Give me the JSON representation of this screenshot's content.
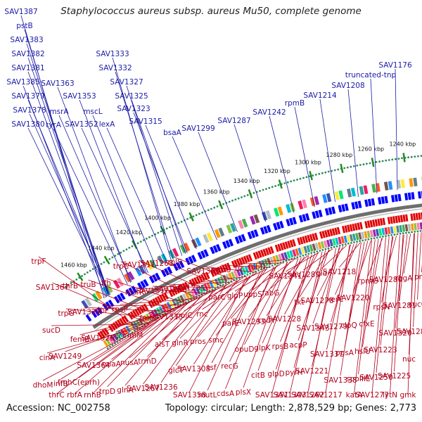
{
  "title": "Staphylococcus aureus subsp. aureus Mu50, complete genome",
  "accession_text": "Accession: NC_002758",
  "summary_text": "Topology: circular; Length: 2,878,529 bp; Genes: 2,773",
  "colors": {
    "backbone": "#6e6e6e",
    "forward_gene": "#0000ff",
    "reverse_gene": "#e00000",
    "forward_label": "#1a1aa6",
    "reverse_label": "#b3001b",
    "tick_dots": "#2e8b57",
    "tick_major": "#228b22"
  },
  "scale_labels": [
    "1460 kbp",
    "1440 kbp",
    "1420 kbp",
    "1400 kbp",
    "1380 kbp",
    "1360 kbp",
    "1340 kbp",
    "1320 kbp",
    "1300 kbp",
    "1280 kbp",
    "1260 kbp",
    "1240 kbp"
  ],
  "forward_genes": [
    "SAV1387",
    "pstB",
    "SAV1383",
    "SAV1382",
    "SAV1381",
    "SAV1385",
    "SAV1379",
    "SAV1378",
    "SAV1380",
    "SAV1363",
    "msrA",
    "tyrA",
    "SAV1353",
    "SAV1352",
    "mscL",
    "lexA",
    "SAV1333",
    "SAV1332",
    "SAV1327",
    "SAV1325",
    "SAV1323",
    "SAV1315",
    "bsaA",
    "SAV1299",
    "SAV1287",
    "SAV1242",
    "rpmB",
    "SAV1214",
    "SAV1208",
    "truncated-tnp",
    "SAV1176"
  ],
  "reverse_genes": [
    "trpF",
    "SAV1367",
    "trpG",
    "femB",
    "SAV1364",
    "trpD",
    "trpC",
    "msrR",
    "fmtC",
    "alsT",
    "glcT",
    "SAV1358",
    "SAV1359",
    "parC",
    "parE",
    "opuD",
    "citB",
    "SAV1351",
    "SAV1341",
    "tkt",
    "SAV1343",
    "SAV1337",
    "SAV1338",
    "katA",
    "rpmG",
    "rpsN",
    "SAV1320",
    "nuc",
    "dhoM",
    "thrC",
    "thrB",
    "SAV1321",
    "SAV1326",
    "miaA",
    "glnA",
    "SAV1311",
    "SAV1312",
    "SAV1313",
    "glnR",
    "SAV1308",
    "mutL",
    "mutS",
    "glpP",
    "SAV1293",
    "glpK",
    "glpD",
    "SAV1303",
    "SAV1289",
    "SAV1278",
    "SAV1279",
    "pgsA",
    "spoIIIE",
    "SAV1277",
    "SAV1280",
    "SAV1281",
    "SAV1282",
    "cinA",
    "infB",
    "rbfA",
    "truB",
    "ribF",
    "rpsO",
    "nusA",
    "SAV1267",
    "SAV1268",
    "SAV1265",
    "polC",
    "pros",
    "tsf",
    "cdsA",
    "frr",
    "uppS",
    "codY",
    "rpsB",
    "pyrH",
    "SAV1262",
    "gid",
    "xerC",
    "clpQ",
    "hslU",
    "SAV1250",
    "lytN",
    "rbgA",
    "sucC",
    "sucD",
    "SAV1249",
    "fmhC(eprh)",
    "rnhB",
    "ffh",
    "rpsP",
    "rimM",
    "trmD",
    "SAV1236",
    "rplS",
    "SAV1235",
    "rnc",
    "smc",
    "recG",
    "plsX",
    "fabD",
    "fabG",
    "SAV1228",
    "acpP",
    "SAV1221",
    "SAV1217",
    "SAV1218",
    "SAV1220",
    "cfxE",
    "SAV1223",
    "SAV1225",
    "gmk",
    "priA"
  ]
}
